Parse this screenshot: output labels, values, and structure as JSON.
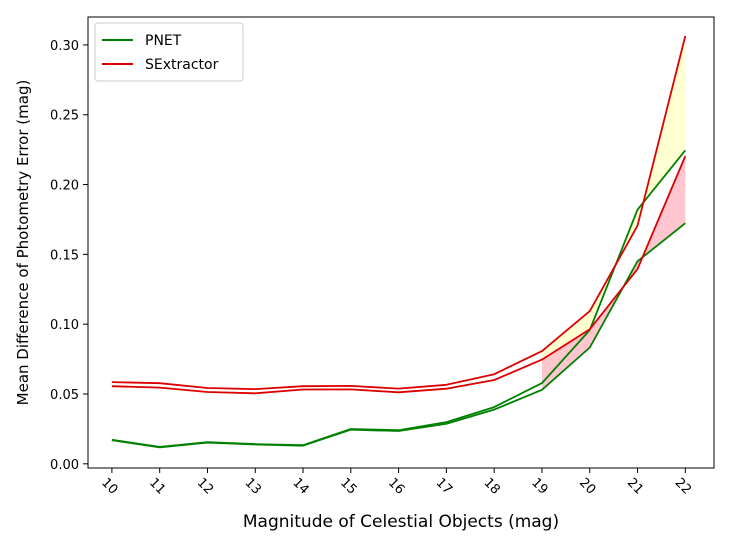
{
  "chart_data": {
    "type": "line",
    "title": "",
    "xlabel": "Magnitude of Celestial Objects (mag)",
    "ylabel": "Mean Difference of Photometry Error (mag)",
    "x": [
      10,
      11,
      12,
      13,
      14,
      15,
      16,
      17,
      18,
      19,
      20,
      21,
      22
    ],
    "x_tick_labels": [
      "10",
      "11",
      "12",
      "13",
      "14",
      "15",
      "16",
      "17",
      "18",
      "19",
      "20",
      "21",
      "22"
    ],
    "y_ticks": [
      0.0,
      0.05,
      0.1,
      0.15,
      0.2,
      0.25,
      0.3
    ],
    "y_tick_labels": [
      "0.00",
      "0.05",
      "0.10",
      "0.15",
      "0.20",
      "0.25",
      "0.30"
    ],
    "xlim": [
      9.5,
      22.6
    ],
    "ylim": [
      -0.003,
      0.32
    ],
    "grid": false,
    "legend_position": "top-left",
    "series": [
      {
        "name": "PNET",
        "color": "#008000",
        "upper": [
          0.0172,
          0.0121,
          0.0155,
          0.0141,
          0.0133,
          0.0249,
          0.0241,
          0.0299,
          0.0406,
          0.0578,
          0.0958,
          0.182,
          0.2245
        ],
        "lower": [
          0.0169,
          0.0118,
          0.0152,
          0.0138,
          0.013,
          0.0244,
          0.0235,
          0.0287,
          0.0388,
          0.053,
          0.0833,
          0.145,
          0.1723
        ]
      },
      {
        "name": "SExtractor",
        "color": "#dd0000",
        "upper": [
          0.0585,
          0.0577,
          0.0543,
          0.0535,
          0.0556,
          0.0558,
          0.0539,
          0.0566,
          0.0642,
          0.0807,
          0.1094,
          0.1705,
          0.3064
        ],
        "lower": [
          0.0556,
          0.0546,
          0.0514,
          0.0505,
          0.0532,
          0.0533,
          0.0512,
          0.0538,
          0.06,
          0.0746,
          0.0964,
          0.1395,
          0.2204
        ]
      }
    ],
    "fills": [
      {
        "color": "#ffffcc",
        "between": [
          "SExtractor.upper",
          "PNET.upper"
        ],
        "x_from": 19
      },
      {
        "color": "#ffc0cb",
        "between": [
          "SExtractor.lower",
          "PNET.lower"
        ],
        "x_from": 19
      }
    ]
  }
}
